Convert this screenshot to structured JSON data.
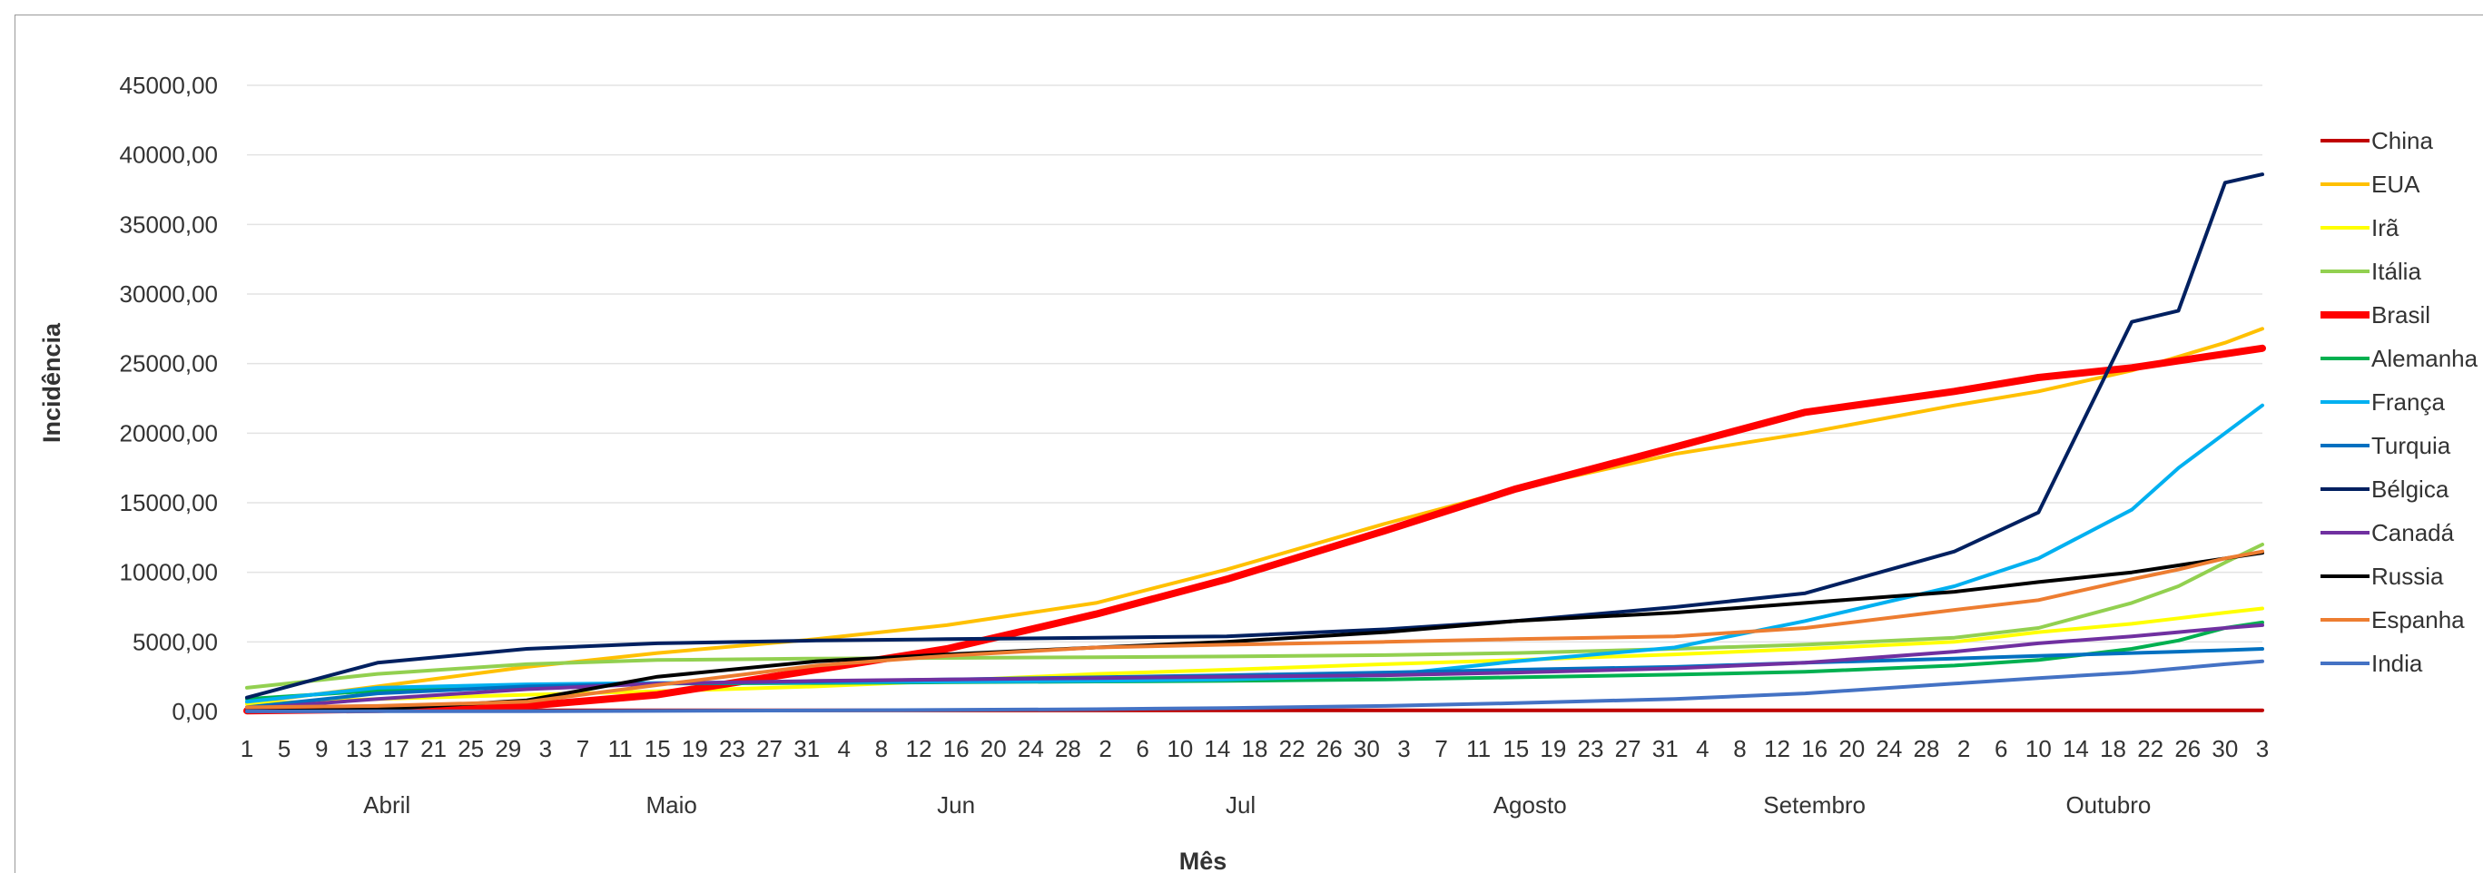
{
  "chart_data": {
    "type": "line",
    "title": "",
    "xlabel": "Mês",
    "ylabel": "Incidência",
    "ylim": [
      0,
      45000
    ],
    "y_ticks": [
      "0,00",
      "5000,00",
      "10000,00",
      "15000,00",
      "20000,00",
      "25000,00",
      "30000,00",
      "35000,00",
      "40000,00",
      "45000,00"
    ],
    "x_day_labels": [
      "1",
      "5",
      "9",
      "13",
      "17",
      "21",
      "25",
      "29",
      "3",
      "7",
      "11",
      "15",
      "19",
      "23",
      "27",
      "31",
      "4",
      "8",
      "12",
      "16",
      "20",
      "24",
      "28",
      "2",
      "6",
      "10",
      "14",
      "18",
      "22",
      "26",
      "30",
      "3",
      "7",
      "11",
      "15",
      "19",
      "23",
      "27",
      "31",
      "4",
      "8",
      "12",
      "16",
      "20",
      "24",
      "28",
      "2",
      "6",
      "10",
      "14",
      "18",
      "22",
      "26",
      "30",
      "3"
    ],
    "months": [
      "Abril",
      "Maio",
      "Jun",
      "Jul",
      "Agosto",
      "Setembro",
      "Outubro"
    ],
    "grid": true,
    "legend_position": "right",
    "x_dates": [
      "2020-04-01",
      "2020-04-15",
      "2020-05-01",
      "2020-05-15",
      "2020-06-01",
      "2020-06-15",
      "2020-07-01",
      "2020-07-15",
      "2020-08-01",
      "2020-08-15",
      "2020-09-01",
      "2020-09-15",
      "2020-10-01",
      "2020-10-10",
      "2020-10-20",
      "2020-10-25",
      "2020-10-30",
      "2020-11-03"
    ],
    "series": [
      {
        "name": "China",
        "color": "#c00000",
        "width": 4,
        "values": [
          80,
          80,
          80,
          80,
          80,
          80,
          80,
          80,
          80,
          80,
          80,
          80,
          80,
          80,
          80,
          80,
          80,
          80
        ]
      },
      {
        "name": "EUA",
        "color": "#ffc000",
        "width": 4,
        "values": [
          600,
          1800,
          3200,
          4200,
          5200,
          6200,
          7800,
          10200,
          13500,
          16000,
          18500,
          20000,
          22000,
          23000,
          24500,
          25500,
          26500,
          27500
        ]
      },
      {
        "name": "Irã",
        "color": "#ffff00",
        "width": 4,
        "values": [
          550,
          900,
          1200,
          1450,
          1800,
          2200,
          2700,
          3000,
          3400,
          3700,
          4100,
          4500,
          5000,
          5700,
          6300,
          6700,
          7100,
          7400
        ]
      },
      {
        "name": "Itália",
        "color": "#92d050",
        "width": 4,
        "values": [
          1700,
          2700,
          3400,
          3700,
          3800,
          3850,
          3900,
          3950,
          4050,
          4200,
          4500,
          4800,
          5300,
          6000,
          7800,
          9000,
          10700,
          12000
        ]
      },
      {
        "name": "Brasil",
        "color": "#ff0000",
        "width": 8,
        "values": [
          50,
          150,
          400,
          1200,
          3000,
          4500,
          7000,
          9500,
          13000,
          16000,
          19000,
          21500,
          23000,
          24000,
          24700,
          25200,
          25700,
          26100
        ]
      },
      {
        "name": "Alemanha",
        "color": "#00b050",
        "width": 4,
        "values": [
          900,
          1500,
          1900,
          2000,
          2050,
          2100,
          2150,
          2200,
          2300,
          2450,
          2650,
          2850,
          3300,
          3700,
          4500,
          5100,
          6000,
          6400
        ]
      },
      {
        "name": "França",
        "color": "#00b0f0",
        "width": 4,
        "values": [
          700,
          1700,
          1950,
          2050,
          2100,
          2150,
          2200,
          2300,
          2600,
          3600,
          4600,
          6500,
          9000,
          11000,
          14500,
          17500,
          20000,
          22000
        ]
      },
      {
        "name": "Turquia",
        "color": "#0070c0",
        "width": 4,
        "values": [
          300,
          1300,
          1800,
          2000,
          2150,
          2300,
          2450,
          2600,
          2800,
          3000,
          3200,
          3500,
          3800,
          4000,
          4200,
          4300,
          4400,
          4500
        ]
      },
      {
        "name": "Bélgica",
        "color": "#002060",
        "width": 4,
        "values": [
          1000,
          3500,
          4500,
          4900,
          5100,
          5200,
          5300,
          5400,
          5900,
          6500,
          7500,
          8500,
          11500,
          14300,
          28000,
          28800,
          38000,
          38600
        ]
      },
      {
        "name": "Canadá",
        "color": "#7030a0",
        "width": 4,
        "values": [
          200,
          900,
          1600,
          2000,
          2200,
          2300,
          2400,
          2500,
          2600,
          2800,
          3100,
          3500,
          4300,
          4900,
          5400,
          5700,
          6000,
          6200
        ]
      },
      {
        "name": "Russia",
        "color": "#000000",
        "width": 4,
        "values": [
          20,
          150,
          800,
          2500,
          3600,
          4100,
          4600,
          5000,
          5700,
          6500,
          7100,
          7800,
          8600,
          9300,
          10000,
          10500,
          11000,
          11400
        ]
      },
      {
        "name": "Espanha",
        "color": "#ed7d31",
        "width": 4,
        "values": [
          300,
          400,
          700,
          1900,
          3300,
          4000,
          4600,
          4800,
          5000,
          5200,
          5400,
          6000,
          7300,
          8000,
          9500,
          10200,
          11000,
          11500
        ]
      },
      {
        "name": "India",
        "color": "#4472c4",
        "width": 4,
        "values": [
          5,
          10,
          20,
          40,
          70,
          110,
          160,
          250,
          400,
          600,
          900,
          1300,
          2000,
          2400,
          2800,
          3100,
          3400,
          3600
        ]
      }
    ]
  }
}
